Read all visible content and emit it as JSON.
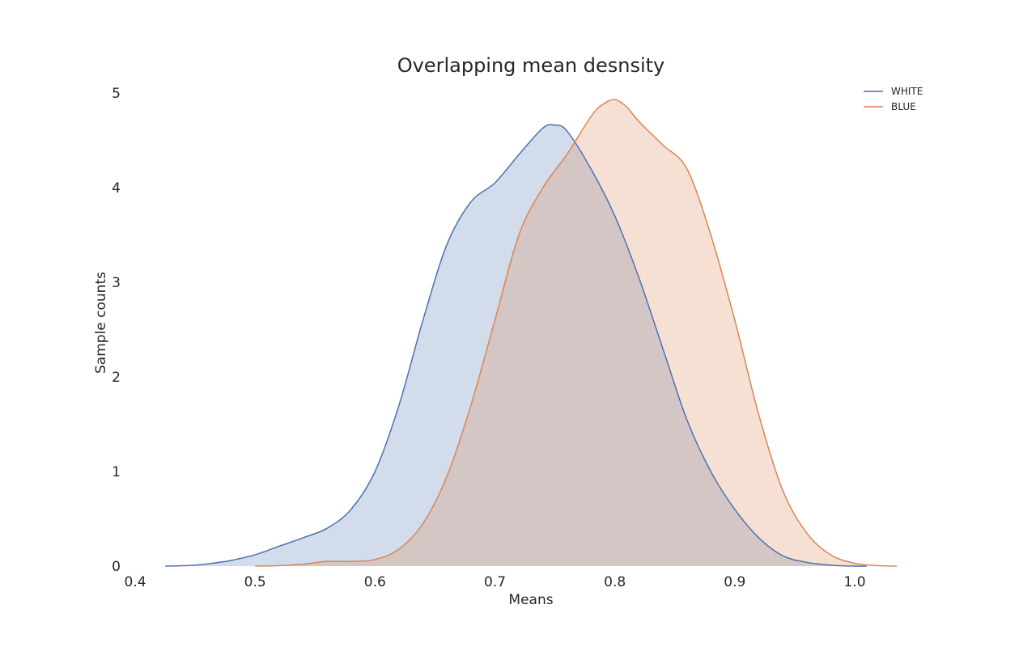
{
  "chart_data": {
    "type": "area",
    "title": "Overlapping mean desnsity",
    "xlabel": "Means",
    "ylabel": "Sample counts",
    "xlim": [
      0.4,
      1.0
    ],
    "ylim": [
      0,
      5
    ],
    "xticks": [
      0.4,
      0.5,
      0.6,
      0.7,
      0.8,
      0.9,
      1.0
    ],
    "xtick_labels": [
      "0.4",
      "0.5",
      "0.6",
      "0.7",
      "0.8",
      "0.9",
      "1.0"
    ],
    "yticks": [
      0,
      1,
      2,
      3,
      4,
      5
    ],
    "ytick_labels": [
      "0",
      "1",
      "2",
      "3",
      "4",
      "5"
    ],
    "grid": false,
    "legend_position": "top-right",
    "series": [
      {
        "name": "WHITE",
        "color": "#4c72b0",
        "fill_color": "#4c72b0",
        "x": [
          0.425,
          0.45,
          0.47,
          0.48,
          0.5,
          0.52,
          0.54,
          0.56,
          0.58,
          0.6,
          0.62,
          0.64,
          0.66,
          0.68,
          0.7,
          0.72,
          0.74,
          0.75,
          0.76,
          0.78,
          0.8,
          0.82,
          0.84,
          0.86,
          0.88,
          0.9,
          0.92,
          0.94,
          0.96,
          0.98,
          1.0,
          1.01
        ],
        "y": [
          0.0,
          0.01,
          0.04,
          0.06,
          0.12,
          0.21,
          0.3,
          0.4,
          0.6,
          1.0,
          1.7,
          2.6,
          3.4,
          3.85,
          4.05,
          4.35,
          4.63,
          4.66,
          4.6,
          4.2,
          3.7,
          3.05,
          2.3,
          1.55,
          1.0,
          0.6,
          0.3,
          0.11,
          0.04,
          0.01,
          0.0,
          0.0
        ]
      },
      {
        "name": "BLUE",
        "color": "#dd8452",
        "fill_color": "#dd8452",
        "x": [
          0.5,
          0.52,
          0.54,
          0.56,
          0.58,
          0.6,
          0.62,
          0.64,
          0.66,
          0.68,
          0.7,
          0.72,
          0.74,
          0.76,
          0.78,
          0.79,
          0.8,
          0.81,
          0.82,
          0.84,
          0.86,
          0.88,
          0.9,
          0.92,
          0.94,
          0.96,
          0.98,
          1.0,
          1.02,
          1.035
        ],
        "y": [
          0.0,
          0.005,
          0.02,
          0.05,
          0.05,
          0.07,
          0.18,
          0.45,
          0.95,
          1.7,
          2.6,
          3.5,
          4.0,
          4.35,
          4.75,
          4.88,
          4.93,
          4.85,
          4.7,
          4.45,
          4.2,
          3.5,
          2.6,
          1.6,
          0.8,
          0.35,
          0.12,
          0.03,
          0.005,
          0.0
        ]
      }
    ]
  }
}
